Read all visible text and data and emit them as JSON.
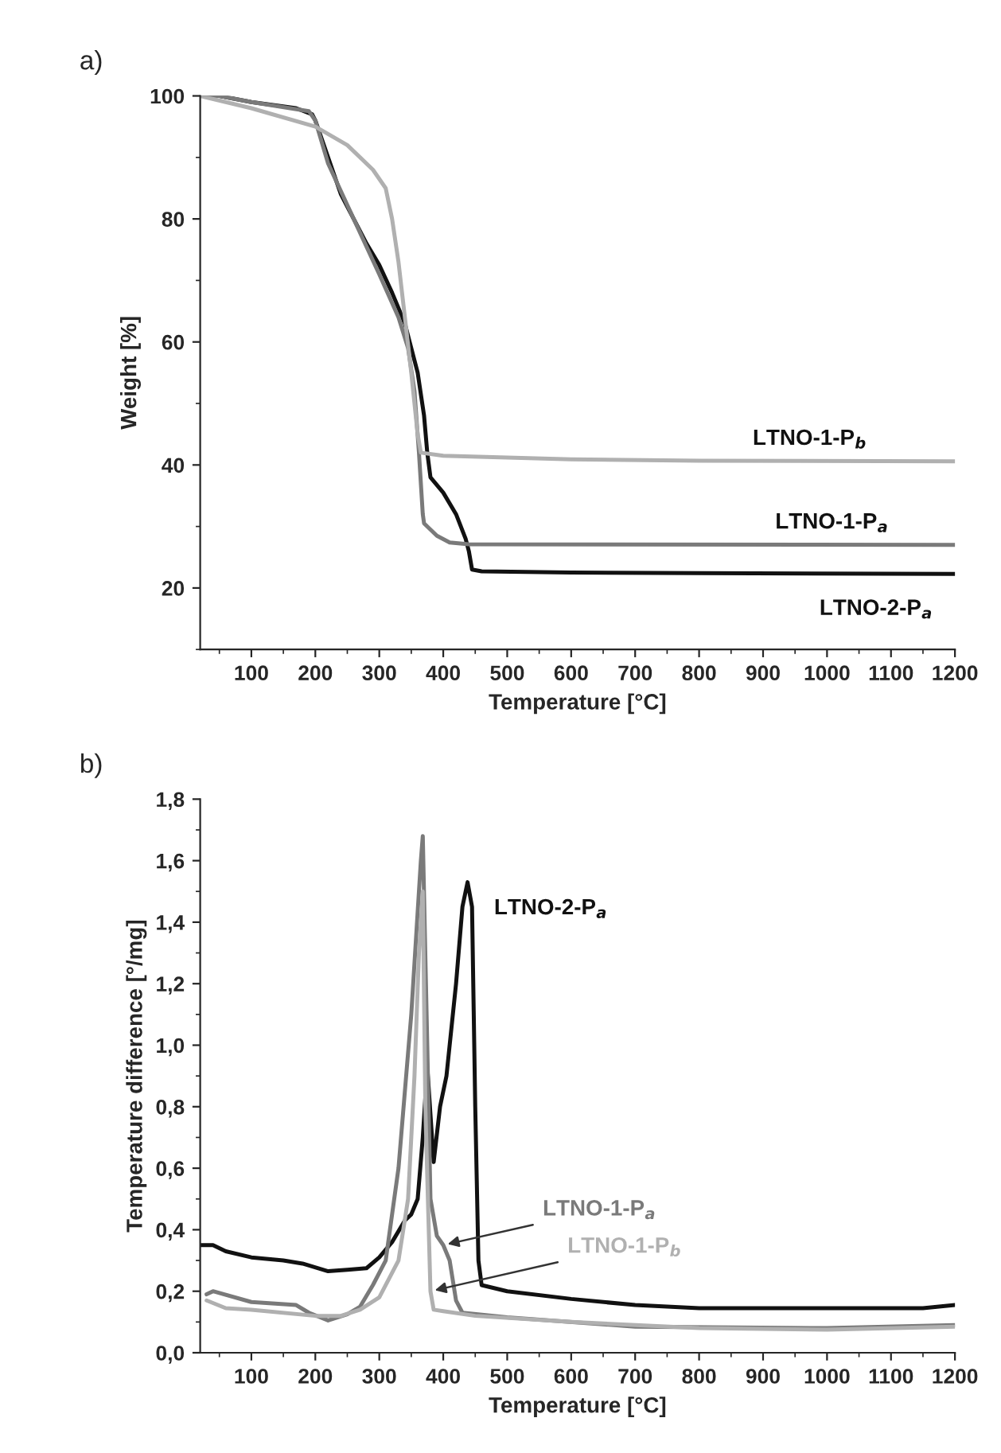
{
  "chart_data": [
    {
      "type": "line",
      "title": "a)",
      "xlabel": "Temperature [°C]",
      "ylabel": "Weight [%]",
      "xlim": [
        20,
        1200
      ],
      "ylim": [
        10,
        100
      ],
      "xticks": [
        100,
        200,
        300,
        400,
        500,
        600,
        700,
        800,
        900,
        1000,
        1100,
        1200
      ],
      "yticks": [
        20,
        40,
        60,
        80,
        100
      ],
      "grid": false,
      "legend": false,
      "line_style": "solid",
      "marker": "none",
      "series": [
        {
          "name": "LTNO-2-P$_{a}$",
          "color": "#111111",
          "x": [
            20,
            50,
            100,
            170,
            195,
            200,
            220,
            240,
            260,
            280,
            300,
            320,
            340,
            360,
            370,
            375,
            380,
            400,
            420,
            435,
            440,
            445,
            460,
            600,
            800,
            1200
          ],
          "values": [
            100,
            100,
            99,
            98,
            97,
            96,
            90,
            84,
            80,
            76,
            72.5,
            68,
            63,
            55,
            48,
            42,
            38,
            35.5,
            32,
            28,
            26,
            23,
            22.7,
            22.5,
            22.4,
            22.3
          ]
        },
        {
          "name": "LTNO-1-P$_{a}$",
          "color": "#7a7a7a",
          "x": [
            20,
            50,
            100,
            190,
            200,
            220,
            260,
            300,
            330,
            345,
            355,
            362,
            368,
            370,
            390,
            410,
            440,
            1200
          ],
          "values": [
            100,
            100,
            99,
            97.5,
            96,
            89,
            80,
            71,
            64,
            59,
            52,
            42,
            32,
            30.5,
            28.5,
            27.4,
            27.1,
            27
          ]
        },
        {
          "name": "LTNO-1-P$_{b}$",
          "color": "#b0b0b0",
          "x": [
            20,
            100,
            200,
            250,
            290,
            310,
            320,
            330,
            340,
            350,
            360,
            365,
            400,
            600,
            800,
            1200
          ],
          "values": [
            100,
            98,
            95,
            92,
            88,
            85,
            80,
            73,
            64,
            55,
            45,
            42,
            41.5,
            40.9,
            40.7,
            40.6
          ]
        }
      ]
    },
    {
      "type": "line",
      "title": "b)",
      "xlabel": "Temperature [°C]",
      "ylabel": "Temperature difference [°/mg]",
      "xlim": [
        20,
        1200
      ],
      "ylim": [
        0,
        1.8
      ],
      "xticks": [
        100,
        200,
        300,
        400,
        500,
        600,
        700,
        800,
        900,
        1000,
        1100,
        1200
      ],
      "yticks": [
        {
          "value": 0,
          "label": "0,0"
        },
        {
          "value": 0.2,
          "label": "0,2"
        },
        {
          "value": 0.4,
          "label": "0,4"
        },
        {
          "value": 0.6,
          "label": "0,6"
        },
        {
          "value": 0.8,
          "label": "0,8"
        },
        {
          "value": 1.0,
          "label": "1,0"
        },
        {
          "value": 1.2,
          "label": "1,2"
        },
        {
          "value": 1.4,
          "label": "1,4"
        },
        {
          "value": 1.6,
          "label": "1,6"
        },
        {
          "value": 1.8,
          "label": "1,8"
        }
      ],
      "grid": false,
      "legend": false,
      "line_style": "solid",
      "marker": "none",
      "series": [
        {
          "name": "LTNO-2-P$_{a}$",
          "color": "#111111",
          "x": [
            20,
            40,
            60,
            100,
            150,
            180,
            220,
            250,
            280,
            300,
            320,
            340,
            350,
            360,
            368,
            375,
            385,
            395,
            405,
            420,
            430,
            438,
            445,
            450,
            455,
            460,
            500,
            600,
            700,
            800,
            1000,
            1150,
            1200
          ],
          "values": [
            0.35,
            0.35,
            0.33,
            0.31,
            0.3,
            0.29,
            0.265,
            0.27,
            0.275,
            0.31,
            0.36,
            0.43,
            0.45,
            0.5,
            0.7,
            0.93,
            0.62,
            0.8,
            0.9,
            1.2,
            1.45,
            1.53,
            1.45,
            0.8,
            0.3,
            0.22,
            0.2,
            0.175,
            0.155,
            0.145,
            0.145,
            0.145,
            0.155
          ]
        },
        {
          "name": "LTNO-1-P$_{a}$",
          "color": "#7a7a7a",
          "x": [
            30,
            40,
            100,
            170,
            190,
            220,
            250,
            270,
            290,
            310,
            330,
            350,
            365,
            368,
            375,
            380,
            390,
            400,
            410,
            420,
            430,
            500,
            700,
            1000,
            1200
          ],
          "values": [
            0.19,
            0.2,
            0.165,
            0.155,
            0.13,
            0.105,
            0.125,
            0.15,
            0.22,
            0.3,
            0.6,
            1.1,
            1.6,
            1.68,
            1.0,
            0.5,
            0.38,
            0.35,
            0.3,
            0.17,
            0.13,
            0.115,
            0.085,
            0.08,
            0.09
          ]
        },
        {
          "name": "LTNO-1-P$_{b}$",
          "color": "#b0b0b0",
          "x": [
            30,
            60,
            100,
            200,
            240,
            270,
            300,
            330,
            345,
            355,
            362,
            368,
            372,
            380,
            385,
            400,
            450,
            600,
            800,
            1000,
            1200
          ],
          "values": [
            0.17,
            0.145,
            0.14,
            0.12,
            0.12,
            0.14,
            0.18,
            0.3,
            0.5,
            0.9,
            1.3,
            1.5,
            0.8,
            0.2,
            0.14,
            0.135,
            0.12,
            0.1,
            0.08,
            0.075,
            0.085
          ]
        }
      ]
    }
  ]
}
